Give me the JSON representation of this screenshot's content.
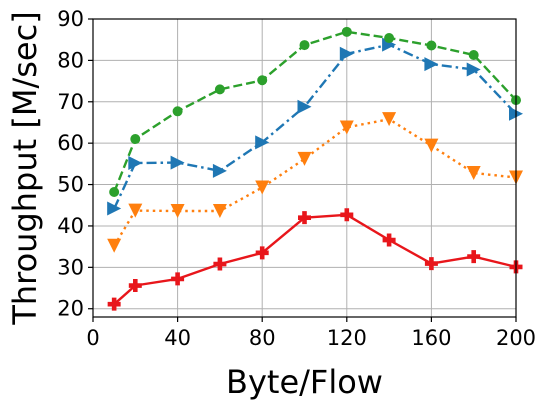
{
  "chart_data": {
    "type": "line",
    "xlabel": "Byte/Flow",
    "ylabel": "Throughput [M/sec]",
    "xlim": [
      0,
      200
    ],
    "ylim": [
      18,
      90
    ],
    "xticks": [
      0,
      40,
      80,
      120,
      160,
      200
    ],
    "yticks": [
      20,
      30,
      40,
      50,
      60,
      70,
      80,
      90
    ],
    "grid": true,
    "x": [
      10,
      20,
      40,
      60,
      80,
      100,
      120,
      140,
      160,
      180,
      200
    ],
    "series": [
      {
        "color": "#1f77b4",
        "linestyle": "dashdot",
        "marker": "triangle-right",
        "values": [
          44.2,
          55.2,
          55.3,
          53.3,
          60.2,
          68.8,
          81.6,
          83.8,
          79.1,
          77.8,
          67.1
        ]
      },
      {
        "color": "#ff7f0e",
        "linestyle": "dotted",
        "marker": "triangle-down",
        "values": [
          35.2,
          43.7,
          43.6,
          43.6,
          49.3,
          56.2,
          63.8,
          65.8,
          59.4,
          52.8,
          51.7
        ]
      },
      {
        "color": "#2ca02c",
        "linestyle": "dashed",
        "marker": "circle",
        "values": [
          48.2,
          61.0,
          67.7,
          73.0,
          75.2,
          83.7,
          86.9,
          85.4,
          83.6,
          81.3,
          70.4
        ]
      },
      {
        "color": "#e8161b",
        "linestyle": "solid",
        "marker": "plus",
        "values": [
          21.1,
          25.6,
          27.2,
          30.8,
          33.5,
          42.0,
          42.7,
          36.6,
          30.9,
          32.6,
          30.1
        ]
      }
    ]
  }
}
